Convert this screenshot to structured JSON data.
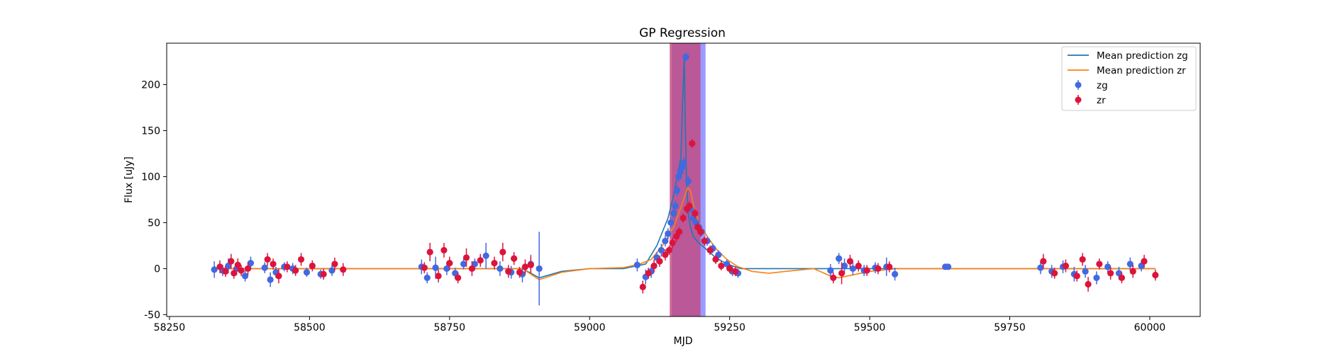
{
  "chart_data": {
    "type": "scatter",
    "title": "GP Regression",
    "xlabel": "MJD",
    "ylabel": "Flux [uJy]",
    "xlim": [
      58245,
      60090
    ],
    "ylim": [
      -52,
      245
    ],
    "xticks": [
      58250,
      58500,
      58750,
      59000,
      59250,
      59500,
      59750,
      60000
    ],
    "yticks": [
      -50,
      0,
      50,
      100,
      150,
      200
    ],
    "grid": false,
    "legend_position": "top-right",
    "shaded_regions": [
      {
        "x0": 59147,
        "x1": 59207,
        "color": "#7a7aff",
        "opacity": 0.75
      },
      {
        "x0": 59143,
        "x1": 59198,
        "color": "#c2477e",
        "opacity": 0.8
      }
    ],
    "series": [
      {
        "name": "Mean prediction zg",
        "kind": "line",
        "color": "#1f77b4",
        "x": [
          58330,
          58400,
          58500,
          58700,
          58800,
          58880,
          58910,
          58950,
          59000,
          59060,
          59100,
          59120,
          59140,
          59150,
          59158,
          59163,
          59166,
          59169,
          59171,
          59173,
          59176,
          59180,
          59185,
          59195,
          59210,
          59225,
          59245,
          59270,
          59300,
          59350,
          59430,
          59500,
          59550,
          59640,
          59800,
          59900,
          60000,
          60010
        ],
        "y": [
          0,
          0,
          0,
          0,
          0,
          0,
          -10,
          -3,
          0,
          0,
          5,
          25,
          55,
          80,
          105,
          120,
          180,
          230,
          150,
          95,
          60,
          45,
          35,
          28,
          20,
          12,
          5,
          0,
          0,
          0,
          0,
          0,
          0,
          0,
          0,
          0,
          0,
          0
        ]
      },
      {
        "name": "Mean prediction zr",
        "kind": "line",
        "color": "#ff7f0e",
        "x": [
          58330,
          58400,
          58500,
          58700,
          58800,
          58880,
          58910,
          58950,
          59000,
          59060,
          59090,
          59110,
          59130,
          59150,
          59165,
          59175,
          59180,
          59185,
          59195,
          59210,
          59225,
          59245,
          59265,
          59290,
          59320,
          59350,
          59400,
          59430,
          59445,
          59500,
          59550,
          59640,
          59800,
          59900,
          60000,
          60010
        ],
        "y": [
          0,
          0,
          0,
          0,
          0,
          0,
          -12,
          -4,
          0,
          1,
          5,
          10,
          25,
          45,
          70,
          88,
          85,
          70,
          50,
          35,
          22,
          10,
          2,
          -3,
          -5,
          -3,
          0,
          -8,
          -10,
          -3,
          0,
          0,
          0,
          0,
          0,
          0
        ]
      },
      {
        "name": "zg",
        "kind": "errorbar",
        "color": "#4169e1",
        "x": [
          58330,
          58345,
          58355,
          58370,
          58385,
          58395,
          58420,
          58430,
          58440,
          58455,
          58470,
          58495,
          58520,
          58540,
          58700,
          58710,
          58725,
          58745,
          58760,
          58775,
          58795,
          58815,
          58840,
          58860,
          58880,
          58895,
          58910,
          59085,
          59100,
          59110,
          59120,
          59128,
          59135,
          59140,
          59145,
          59150,
          59153,
          59156,
          59159,
          59162,
          59165,
          59168,
          59172,
          59176,
          59180,
          59185,
          59190,
          59195,
          59200,
          59210,
          59220,
          59230,
          59245,
          59255,
          59265,
          59430,
          59445,
          59455,
          59470,
          59490,
          59510,
          59530,
          59545,
          59635,
          59640,
          59805,
          59825,
          59845,
          59865,
          59885,
          59905,
          59925,
          59945,
          59965,
          59985
        ],
        "y": [
          -1,
          -2,
          3,
          0,
          -8,
          6,
          1,
          -12,
          -4,
          2,
          0,
          -4,
          -6,
          -2,
          2,
          -10,
          1,
          0,
          -5,
          5,
          5,
          14,
          0,
          -4,
          -6,
          5,
          0,
          4,
          -9,
          -3,
          12,
          20,
          30,
          38,
          50,
          60,
          68,
          85,
          100,
          105,
          110,
          115,
          230,
          95,
          65,
          55,
          50,
          45,
          40,
          30,
          22,
          15,
          5,
          -3,
          -5,
          -2,
          11,
          3,
          0,
          -2,
          1,
          2,
          -6,
          2,
          2,
          1,
          -3,
          2,
          -6,
          -3,
          -10,
          2,
          -5,
          5,
          3
        ],
        "err": [
          9,
          6,
          8,
          7,
          6,
          7,
          6,
          8,
          6,
          5,
          6,
          5,
          5,
          6,
          8,
          6,
          12,
          7,
          6,
          6,
          6,
          14,
          8,
          7,
          9,
          10,
          40,
          7,
          8,
          7,
          6,
          7,
          6,
          6,
          6,
          6,
          6,
          6,
          6,
          6,
          6,
          6,
          5,
          6,
          5,
          5,
          5,
          5,
          5,
          5,
          5,
          5,
          5,
          5,
          5,
          7,
          6,
          8,
          7,
          6,
          6,
          10,
          7,
          3,
          3,
          7,
          7,
          7,
          8,
          7,
          7,
          6,
          7,
          7,
          6
        ]
      },
      {
        "name": "zr",
        "kind": "errorbar",
        "color": "#dc143c",
        "x": [
          58340,
          58350,
          58360,
          58365,
          58372,
          58378,
          58390,
          58425,
          58435,
          58445,
          58460,
          58475,
          58485,
          58505,
          58525,
          58545,
          58560,
          58705,
          58715,
          58730,
          58740,
          58750,
          58765,
          58780,
          58790,
          58805,
          58830,
          58845,
          58855,
          58865,
          58875,
          58885,
          58895,
          59095,
          59105,
          59115,
          59125,
          59135,
          59142,
          59148,
          59155,
          59160,
          59167,
          59174,
          59178,
          59183,
          59188,
          59193,
          59198,
          59205,
          59215,
          59225,
          59235,
          59250,
          59260,
          59435,
          59450,
          59465,
          59480,
          59495,
          59515,
          59535,
          59810,
          59830,
          59850,
          59870,
          59880,
          59890,
          59910,
          59930,
          59950,
          59970,
          59990,
          60010
        ],
        "y": [
          2,
          -3,
          8,
          -5,
          4,
          -2,
          0,
          10,
          5,
          -8,
          2,
          -2,
          10,
          3,
          -6,
          5,
          -1,
          1,
          18,
          -8,
          20,
          6,
          -10,
          12,
          0,
          9,
          6,
          18,
          -3,
          11,
          -4,
          2,
          4,
          -20,
          -5,
          3,
          8,
          15,
          20,
          28,
          35,
          40,
          55,
          65,
          68,
          136,
          60,
          45,
          40,
          30,
          20,
          10,
          3,
          0,
          -3,
          -10,
          -5,
          8,
          3,
          -2,
          0,
          2,
          8,
          -5,
          3,
          -8,
          10,
          -17,
          5,
          -5,
          -10,
          -3,
          8,
          -7
        ],
        "err": [
          7,
          6,
          8,
          6,
          7,
          6,
          7,
          7,
          6,
          8,
          6,
          6,
          7,
          6,
          6,
          7,
          7,
          6,
          10,
          7,
          8,
          7,
          6,
          10,
          8,
          7,
          7,
          10,
          7,
          7,
          6,
          8,
          9,
          7,
          6,
          7,
          6,
          6,
          5,
          6,
          6,
          5,
          5,
          5,
          5,
          5,
          5,
          5,
          5,
          5,
          5,
          5,
          5,
          5,
          5,
          6,
          12,
          7,
          6,
          6,
          6,
          6,
          8,
          6,
          7,
          6,
          7,
          8,
          6,
          7,
          6,
          7,
          7,
          6
        ]
      }
    ]
  }
}
